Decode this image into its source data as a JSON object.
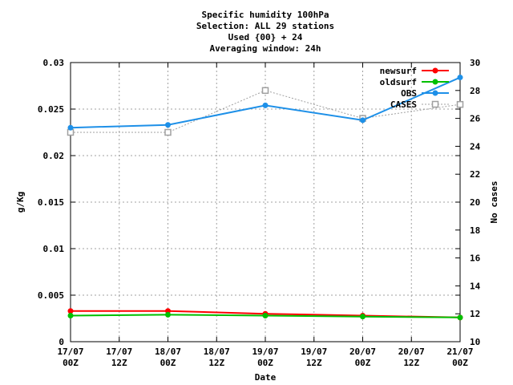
{
  "chart_data": {
    "type": "line",
    "title_lines": [
      "Specific humidity 100hPa",
      "Selection: ALL     29 stations",
      "Used {00} + 24",
      "Averaging window: 24h"
    ],
    "xlabel": "Date",
    "ylabel": "g/Kg",
    "y2label": "No cases",
    "x_ticks": [
      {
        "x": 0,
        "line1": "17/07",
        "line2": "00Z"
      },
      {
        "x": 0.5,
        "line1": "17/07",
        "line2": "12Z"
      },
      {
        "x": 1,
        "line1": "18/07",
        "line2": "00Z"
      },
      {
        "x": 1.5,
        "line1": "18/07",
        "line2": "12Z"
      },
      {
        "x": 2,
        "line1": "19/07",
        "line2": "00Z"
      },
      {
        "x": 2.5,
        "line1": "19/07",
        "line2": "12Z"
      },
      {
        "x": 3,
        "line1": "20/07",
        "line2": "00Z"
      },
      {
        "x": 3.5,
        "line1": "20/07",
        "line2": "12Z"
      },
      {
        "x": 4,
        "line1": "21/07",
        "line2": "00Z"
      }
    ],
    "xlim": [
      0,
      4
    ],
    "ylim": [
      0,
      0.03
    ],
    "y_ticks": [
      {
        "v": 0,
        "label": "0"
      },
      {
        "v": 0.005,
        "label": "0.005"
      },
      {
        "v": 0.01,
        "label": "0.01"
      },
      {
        "v": 0.015,
        "label": "0.015"
      },
      {
        "v": 0.02,
        "label": "0.02"
      },
      {
        "v": 0.025,
        "label": "0.025"
      },
      {
        "v": 0.03,
        "label": "0.03"
      }
    ],
    "y2lim": [
      10,
      30
    ],
    "y2_ticks": [
      {
        "v": 10,
        "label": "10"
      },
      {
        "v": 12,
        "label": "12"
      },
      {
        "v": 14,
        "label": "14"
      },
      {
        "v": 16,
        "label": "16"
      },
      {
        "v": 18,
        "label": "18"
      },
      {
        "v": 20,
        "label": "20"
      },
      {
        "v": 22,
        "label": "22"
      },
      {
        "v": 24,
        "label": "24"
      },
      {
        "v": 26,
        "label": "26"
      },
      {
        "v": 28,
        "label": "28"
      },
      {
        "v": 30,
        "label": "30"
      }
    ],
    "grid": true,
    "legend_position": "top-right",
    "series": [
      {
        "name": "newsurf",
        "color": "#ff0000",
        "axis": "y1",
        "marker": "filled-circle",
        "x": [
          0,
          1,
          2,
          3,
          4
        ],
        "values": [
          0.0033,
          0.0033,
          0.003,
          0.0028,
          0.0026
        ]
      },
      {
        "name": "oldsurf",
        "color": "#00c000",
        "axis": "y1",
        "marker": "filled-circle",
        "x": [
          0,
          1,
          2,
          3,
          4
        ],
        "values": [
          0.0028,
          0.0029,
          0.0028,
          0.0027,
          0.0026
        ]
      },
      {
        "name": "OBS",
        "color": "#1e90e8",
        "axis": "y1",
        "marker": "filled-circle",
        "x": [
          0,
          1,
          2,
          3,
          4
        ],
        "values": [
          0.023,
          0.0233,
          0.0254,
          0.0238,
          0.0284
        ]
      },
      {
        "name": "CASES",
        "color": "#a0a0a0",
        "axis": "y2",
        "marker": "open-square",
        "dashed": true,
        "x": [
          0,
          1,
          2,
          3,
          4
        ],
        "values": [
          25,
          25,
          28,
          26,
          27
        ]
      }
    ]
  }
}
